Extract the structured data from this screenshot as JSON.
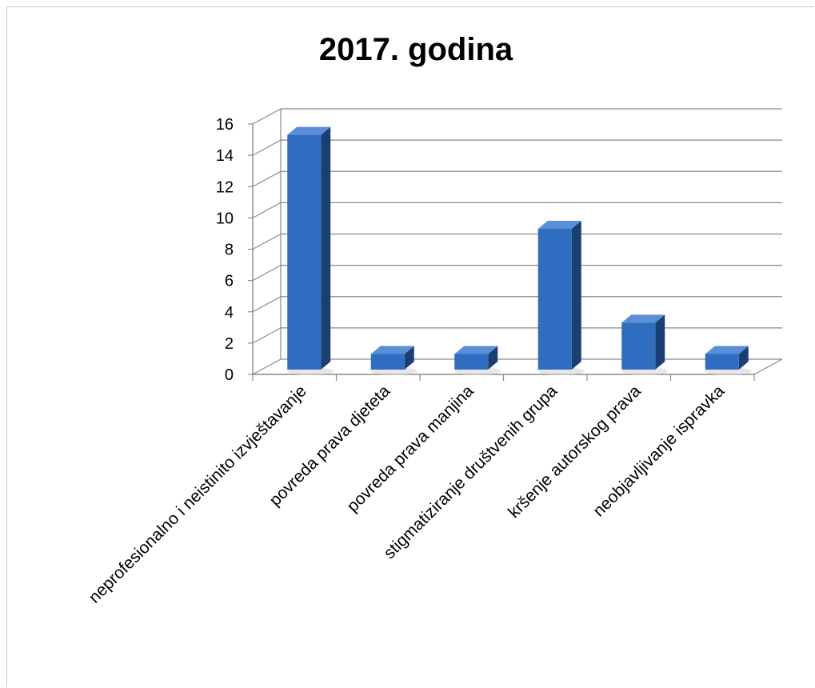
{
  "chart_data": {
    "type": "bar",
    "title": "2017. godina",
    "categories": [
      "neprofesionalno i neistinito izvještavanje",
      "povreda prava djeteta",
      "povreda prava manjina",
      "stigmatiziranje društvenih grupa",
      "kršenje autorskog prava",
      "neobjavljivanje ispravka"
    ],
    "values": [
      15,
      1,
      1,
      9,
      3,
      1
    ],
    "ylim": [
      0,
      16
    ],
    "yticks": [
      0,
      2,
      4,
      6,
      8,
      10,
      12,
      14,
      16
    ],
    "xlabel": "",
    "ylabel": "",
    "grid": true,
    "style": "3d-column",
    "bar_color": "#2f6dc0",
    "bar_side_color": "#1a3f73",
    "bar_top_color": "#5a8fd8"
  }
}
